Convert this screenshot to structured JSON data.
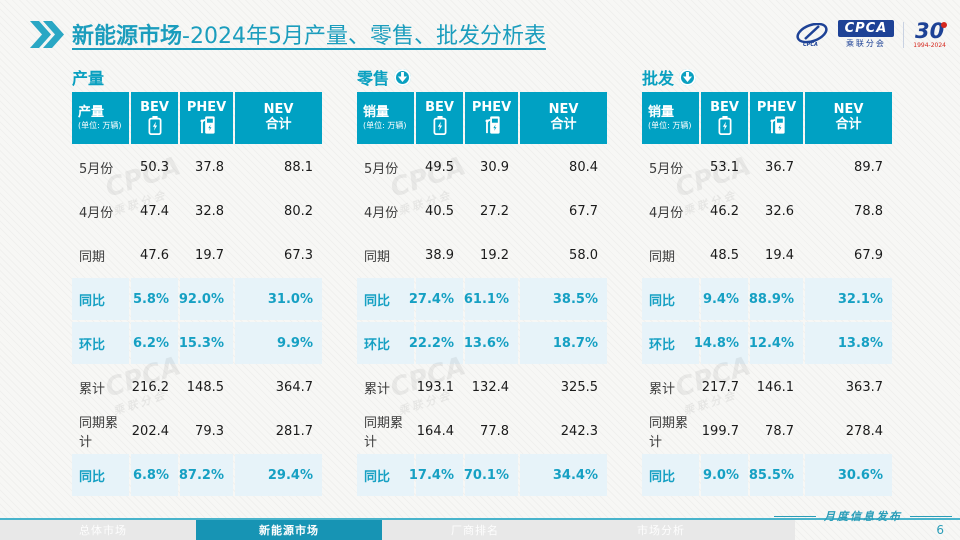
{
  "slide": {
    "title": {
      "bold": "新能源市场",
      "rest": "-2024年5月产量、零售、批发分析表"
    },
    "page_number": "6",
    "footer_note": "月度信息发布",
    "footer_tabs": [
      {
        "label": "总体市场",
        "active": false
      },
      {
        "label": "新能源市场",
        "active": true
      },
      {
        "label": "厂商排名",
        "active": false
      },
      {
        "label": "市场分析",
        "active": false
      }
    ],
    "logos": {
      "cpca": "CPCA",
      "cpca_sub": "乘联分会",
      "anniversary": "30",
      "anniversary_years": "1994-2024"
    },
    "watermark": "CPCA 乘联分会"
  },
  "colors": {
    "teal_header": "#00a1c3",
    "teal_title": "#1b9dbd",
    "highlight_row_bg": "#e7f3f9",
    "highlight_text": "#16a0c3",
    "logo_blue": "#1e4296",
    "logo_red": "#d5281e"
  },
  "tables": [
    {
      "section_title": "产量",
      "has_arrow": false,
      "header": {
        "label": "产量",
        "unit": "(单位: 万辆)",
        "col2": "BEV",
        "col3": "PHEV",
        "col4_line1": "NEV",
        "col4_line2": "合计"
      },
      "rows": [
        {
          "label": "5月份",
          "values": [
            "50.3",
            "37.8",
            "88.1"
          ],
          "highlight": false
        },
        {
          "label": "4月份",
          "values": [
            "47.4",
            "32.8",
            "80.2"
          ],
          "highlight": false
        },
        {
          "label": "同期",
          "values": [
            "47.6",
            "19.7",
            "67.3"
          ],
          "highlight": false
        },
        {
          "label": "同比",
          "values": [
            "5.8%",
            "92.0%",
            "31.0%"
          ],
          "highlight": true
        },
        {
          "label": "环比",
          "values": [
            "6.2%",
            "15.3%",
            "9.9%"
          ],
          "highlight": true
        },
        {
          "label": "累计",
          "values": [
            "216.2",
            "148.5",
            "364.7"
          ],
          "highlight": false
        },
        {
          "label": "同期累计",
          "values": [
            "202.4",
            "79.3",
            "281.7"
          ],
          "highlight": false
        },
        {
          "label": "同比",
          "values": [
            "6.8%",
            "87.2%",
            "29.4%"
          ],
          "highlight": true
        }
      ]
    },
    {
      "section_title": "零售",
      "has_arrow": true,
      "header": {
        "label": "销量",
        "unit": "(单位: 万辆)",
        "col2": "BEV",
        "col3": "PHEV",
        "col4_line1": "NEV",
        "col4_line2": "合计"
      },
      "rows": [
        {
          "label": "5月份",
          "values": [
            "49.5",
            "30.9",
            "80.4"
          ],
          "highlight": false
        },
        {
          "label": "4月份",
          "values": [
            "40.5",
            "27.2",
            "67.7"
          ],
          "highlight": false
        },
        {
          "label": "同期",
          "values": [
            "38.9",
            "19.2",
            "58.0"
          ],
          "highlight": false
        },
        {
          "label": "同比",
          "values": [
            "27.4%",
            "61.1%",
            "38.5%"
          ],
          "highlight": true
        },
        {
          "label": "环比",
          "values": [
            "22.2%",
            "13.6%",
            "18.7%"
          ],
          "highlight": true
        },
        {
          "label": "累计",
          "values": [
            "193.1",
            "132.4",
            "325.5"
          ],
          "highlight": false
        },
        {
          "label": "同期累计",
          "values": [
            "164.4",
            "77.8",
            "242.3"
          ],
          "highlight": false
        },
        {
          "label": "同比",
          "values": [
            "17.4%",
            "70.1%",
            "34.4%"
          ],
          "highlight": true
        }
      ]
    },
    {
      "section_title": "批发",
      "has_arrow": true,
      "header": {
        "label": "销量",
        "unit": "(单位: 万辆)",
        "col2": "BEV",
        "col3": "PHEV",
        "col4_line1": "NEV",
        "col4_line2": "合计"
      },
      "rows": [
        {
          "label": "5月份",
          "values": [
            "53.1",
            "36.7",
            "89.7"
          ],
          "highlight": false
        },
        {
          "label": "4月份",
          "values": [
            "46.2",
            "32.6",
            "78.8"
          ],
          "highlight": false
        },
        {
          "label": "同期",
          "values": [
            "48.5",
            "19.4",
            "67.9"
          ],
          "highlight": false
        },
        {
          "label": "同比",
          "values": [
            "9.4%",
            "88.9%",
            "32.1%"
          ],
          "highlight": true
        },
        {
          "label": "环比",
          "values": [
            "14.8%",
            "12.4%",
            "13.8%"
          ],
          "highlight": true
        },
        {
          "label": "累计",
          "values": [
            "217.7",
            "146.1",
            "363.7"
          ],
          "highlight": false
        },
        {
          "label": "同期累计",
          "values": [
            "199.7",
            "78.7",
            "278.4"
          ],
          "highlight": false
        },
        {
          "label": "同比",
          "values": [
            "9.0%",
            "85.5%",
            "30.6%"
          ],
          "highlight": true
        }
      ]
    }
  ]
}
